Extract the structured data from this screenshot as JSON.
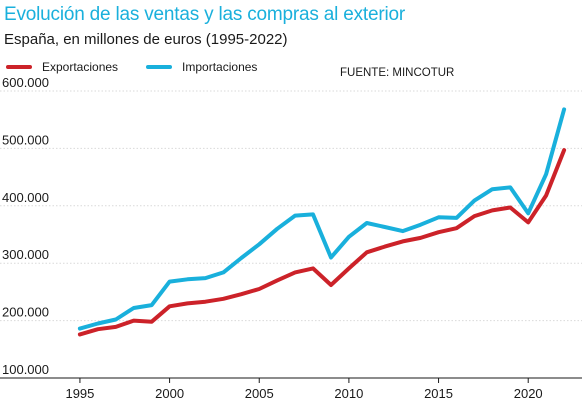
{
  "title": "Evolución de las ventas y las compras al exterior",
  "subtitle": "España, en millones de euros (1995-2022)",
  "source": "FUENTE: MINCOTUR",
  "colors": {
    "exportaciones": "#cc2229",
    "importaciones": "#19b0dc",
    "title": "#1ab0dc",
    "grid": "#d9d9d9",
    "text": "#1a1a1a"
  },
  "chart_data": {
    "type": "line",
    "x": [
      1995,
      1996,
      1997,
      1998,
      1999,
      2000,
      2001,
      2002,
      2003,
      2004,
      2005,
      2006,
      2007,
      2008,
      2009,
      2010,
      2011,
      2012,
      2013,
      2014,
      2015,
      2016,
      2017,
      2018,
      2019,
      2020,
      2021,
      2022
    ],
    "series": [
      {
        "name": "Exportaciones",
        "color": "#cc2229",
        "values": [
          176000,
          185000,
          189000,
          200000,
          198000,
          225000,
          230000,
          233000,
          238000,
          246000,
          255000,
          270000,
          284000,
          291000,
          262000,
          291000,
          319000,
          329000,
          338000,
          344000,
          354000,
          361000,
          382000,
          392000,
          397000,
          371000,
          418000,
          497000
        ]
      },
      {
        "name": "Importaciones",
        "color": "#19b0dc",
        "values": [
          186000,
          195000,
          202000,
          222000,
          227000,
          268000,
          272000,
          274000,
          284000,
          309000,
          333000,
          360000,
          383000,
          385000,
          310000,
          346000,
          370000,
          363000,
          356000,
          367000,
          380000,
          379000,
          409000,
          429000,
          432000,
          387000,
          455000,
          568000
        ]
      }
    ],
    "ylim": [
      100000,
      600000
    ],
    "xlim": [
      1994,
      2023
    ],
    "yticks": [
      100000,
      200000,
      300000,
      400000,
      500000,
      600000
    ],
    "ytick_labels": [
      "100.000",
      "200.000",
      "300.000",
      "400.000",
      "500.000",
      "600.000"
    ],
    "xticks": [
      1995,
      2000,
      2005,
      2010,
      2015,
      2020
    ],
    "xtick_labels": [
      "1995",
      "2000",
      "2005",
      "2010",
      "2015",
      "2020"
    ],
    "grid": true,
    "legend": "top-left"
  }
}
